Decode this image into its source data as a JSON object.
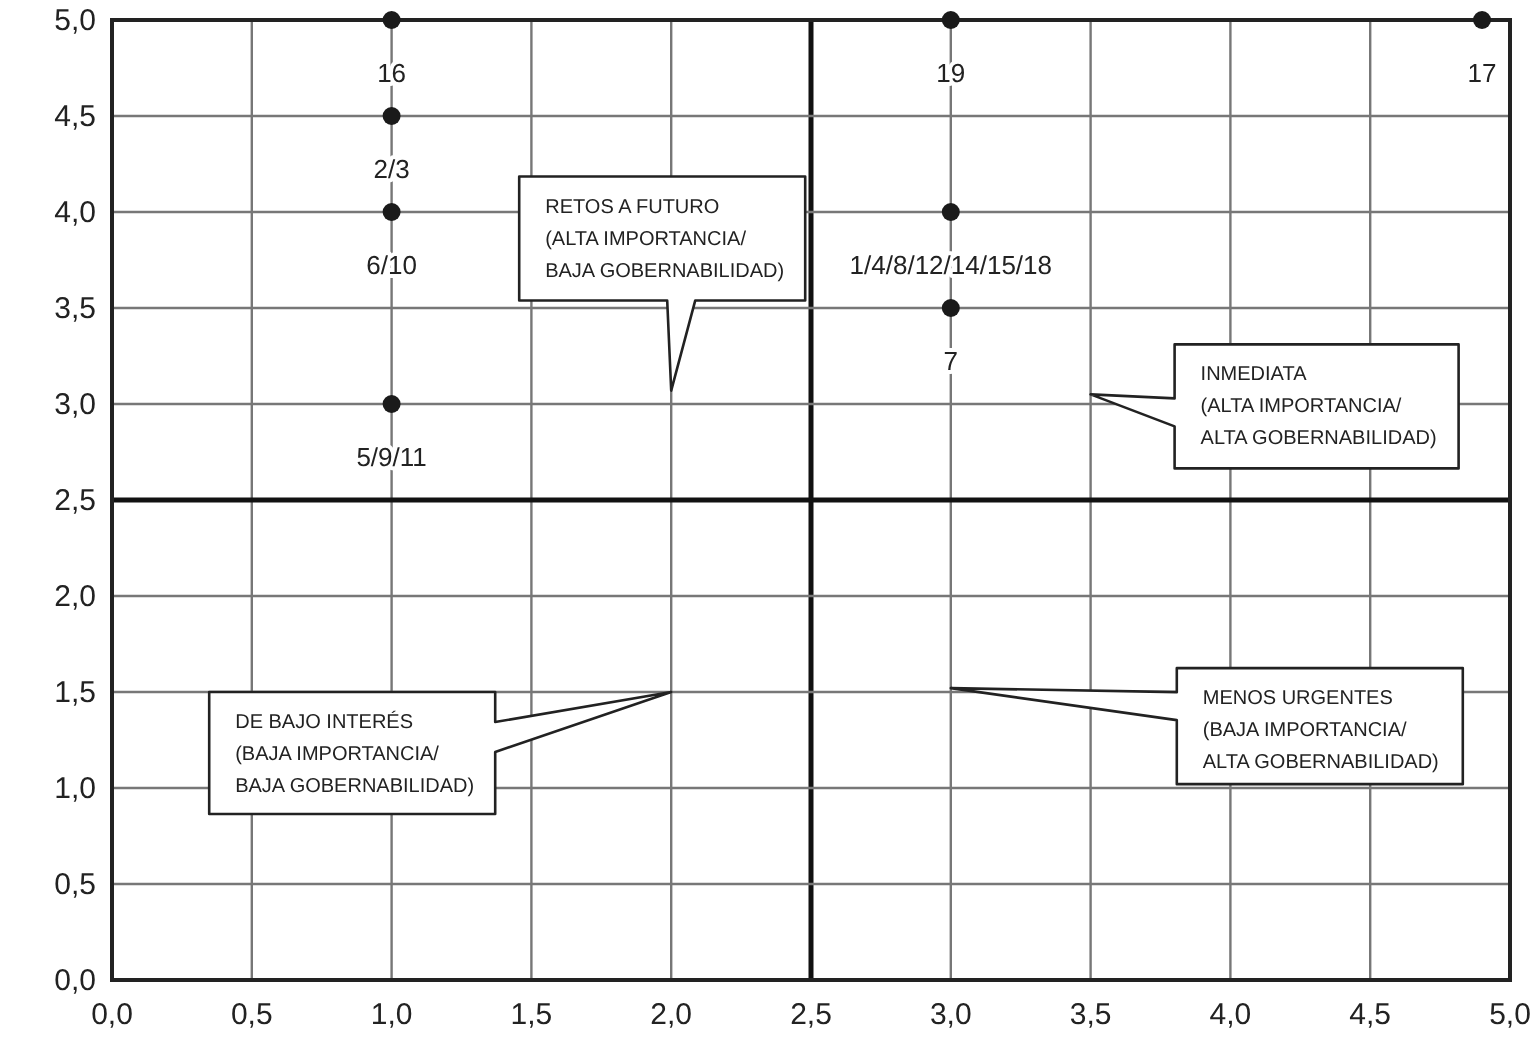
{
  "chart_data": {
    "type": "scatter",
    "x": [
      1,
      1,
      1,
      1,
      3,
      3,
      3,
      4.9
    ],
    "values": [
      5,
      4.5,
      4,
      3,
      5,
      4,
      3.5,
      5
    ],
    "color": "#1a1a1a",
    "marker": "circle",
    "grid": true,
    "xlim": [
      0,
      5
    ],
    "ylim": [
      0,
      5
    ],
    "xticks": [
      {
        "value": 0,
        "label": "0,0"
      },
      {
        "value": 0.5,
        "label": "0,5"
      },
      {
        "value": 1,
        "label": "1,0"
      },
      {
        "value": 1.5,
        "label": "1,5"
      },
      {
        "value": 2,
        "label": "2,0"
      },
      {
        "value": 2.5,
        "label": "2,5"
      },
      {
        "value": 3,
        "label": "3,0"
      },
      {
        "value": 3.5,
        "label": "3,5"
      },
      {
        "value": 4,
        "label": "4,0"
      },
      {
        "value": 4.5,
        "label": "4,5"
      },
      {
        "value": 5,
        "label": "5,0"
      }
    ],
    "yticks": [
      {
        "value": 0,
        "label": "0,0"
      },
      {
        "value": 0.5,
        "label": "0,5"
      },
      {
        "value": 1,
        "label": "1,0"
      },
      {
        "value": 1.5,
        "label": "1,5"
      },
      {
        "value": 2,
        "label": "2,0"
      },
      {
        "value": 2.5,
        "label": "2,5"
      },
      {
        "value": 3,
        "label": "3,0"
      },
      {
        "value": 3.5,
        "label": "3,5"
      },
      {
        "value": 4,
        "label": "4,0"
      },
      {
        "value": 4.5,
        "label": "4,5"
      },
      {
        "value": 5,
        "label": "5,0"
      }
    ],
    "annotations": [
      {
        "text": "16",
        "x": 1,
        "y": 5
      },
      {
        "text": "2/3",
        "x": 1,
        "y": 4.5
      },
      {
        "text": "6/10",
        "x": 1,
        "y": 4
      },
      {
        "text": "5/9/11",
        "x": 1,
        "y": 3
      },
      {
        "text": "19",
        "x": 3,
        "y": 5
      },
      {
        "text": "1/4/8/12/14/15/18",
        "x": 3,
        "y": 4
      },
      {
        "text": "7",
        "x": 3,
        "y": 3.5
      },
      {
        "text": "17",
        "x": 4.9,
        "y": 5
      },
      "RETOS A FUTURO\n(ALTA IMPORTANCIA/\nBAJA GOBERNABILIDAD)",
      "INMEDIATA\n(ALTA IMPORTANCIA/\nALTA GOBERNABILIDAD)",
      "DE BAJO INTERÉS\n(BAJA IMPORTANCIA/\nBAJA GOBERNABILIDAD)",
      "MENOS URGENTES\n(BAJA IMPORTANCIA/\nALTA GOBERNABILIDAD)"
    ]
  }
}
